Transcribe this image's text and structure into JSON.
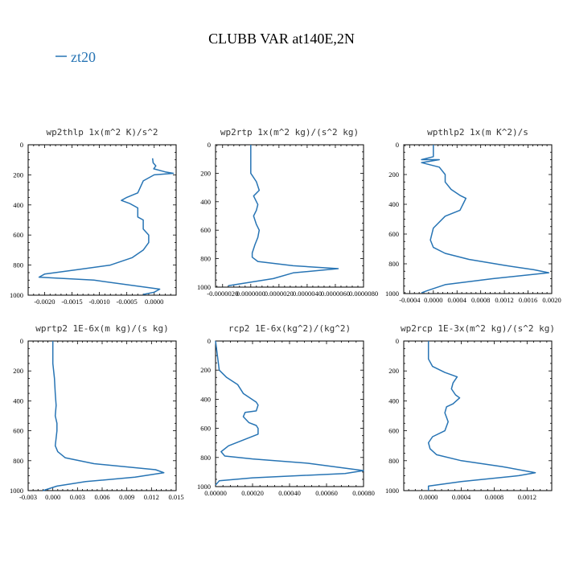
{
  "figure": {
    "title": "CLUBB VAR at140E,2N",
    "legend": {
      "label": "zt20",
      "color": "#2774b4"
    }
  },
  "chart_data": [
    {
      "type": "line",
      "title": "wp2thlp  1x(m^2 K)/s^2",
      "xlim": [
        -0.0023,
        0.0004
      ],
      "ylim": [
        1000,
        0
      ],
      "xticks": [
        -0.002,
        -0.0015,
        -0.001,
        -0.0005,
        0.0
      ],
      "xtick_labels": [
        "-0.0020",
        "-0.0015",
        "-0.0010",
        "-0.0005",
        "0.0000"
      ],
      "yticks": [
        0,
        200,
        400,
        600,
        800,
        1000
      ],
      "ytick_labels": [
        "0",
        "200",
        "400",
        "600",
        "800",
        "1000"
      ],
      "series": [
        {
          "name": "zt20",
          "x": [
            -3e-05,
            -2e-05,
            3e-05,
            -1e-05,
            0.0002,
            0.00035,
            0.0,
            -0.0002,
            -0.0003,
            -0.0005,
            -0.0006,
            -0.00045,
            -0.0003,
            -0.0003,
            -0.0002,
            -0.0002,
            -0.0001,
            -0.0001,
            -0.0002,
            -0.0004,
            -0.0008,
            -0.0014,
            -0.002,
            -0.0021,
            -0.0011,
            0.0001,
            0.0,
            -0.0002
          ],
          "y": [
            90,
            120,
            140,
            160,
            180,
            190,
            200,
            240,
            320,
            350,
            370,
            390,
            420,
            480,
            500,
            560,
            600,
            650,
            700,
            750,
            800,
            830,
            860,
            880,
            900,
            960,
            980,
            995
          ]
        }
      ]
    },
    {
      "type": "line",
      "title": "wp2rtp  1x(m^2 kg)/(s^2 kg)",
      "xlim": [
        -2.5e-06,
        8e-06
      ],
      "ylim": [
        1000,
        0
      ],
      "xticks": [
        -2e-06,
        0.0,
        2e-06,
        4e-06,
        6e-06,
        8e-06
      ],
      "xtick_labels": [
        "-0.0000020",
        "0.0000000",
        "0.0000020",
        "0.0000040",
        "0.0000060",
        "0.0000080"
      ],
      "yticks": [
        0,
        200,
        400,
        600,
        800,
        1000
      ],
      "ytick_labels": [
        "0",
        "200",
        "400",
        "600",
        "800",
        "1000"
      ],
      "series": [
        {
          "name": "zt20",
          "x": [
            0.0,
            0.0,
            0.0,
            4e-07,
            6e-07,
            2e-07,
            5e-07,
            4e-07,
            2e-07,
            4e-07,
            6e-07,
            5e-07,
            3e-07,
            1e-07,
            1e-07,
            5e-07,
            3e-06,
            6.2e-06,
            3e-06,
            1.6e-06,
            -1.6e-06
          ],
          "y": [
            0,
            150,
            200,
            260,
            320,
            360,
            420,
            460,
            500,
            560,
            600,
            650,
            700,
            760,
            790,
            820,
            850,
            870,
            900,
            940,
            990
          ]
        }
      ]
    },
    {
      "type": "line",
      "title": "wpthlp2  1x(m K^2)/s",
      "xlim": [
        -0.0005,
        0.002
      ],
      "ylim": [
        1000,
        0
      ],
      "xticks": [
        -0.0004,
        0.0,
        0.0004,
        0.0008,
        0.0012,
        0.0016,
        0.002
      ],
      "xtick_labels": [
        "-0.0004",
        "0.0000",
        "0.0004",
        "0.0008",
        "0.0012",
        "0.0016",
        "0.0020"
      ],
      "yticks": [
        0,
        200,
        400,
        600,
        800,
        1000
      ],
      "ytick_labels": [
        "0",
        "200",
        "400",
        "600",
        "800",
        "1000"
      ],
      "series": [
        {
          "name": "zt20",
          "x": [
            0.0,
            0.0,
            -0.0002,
            0.0001,
            -0.0002,
            0.0001,
            0.0002,
            0.0002,
            0.0003,
            0.00045,
            0.00055,
            0.0005,
            0.00045,
            0.0002,
            0.0,
            -5e-05,
            0.0,
            0.0002,
            0.0006,
            0.0012,
            0.0017,
            0.00195,
            0.001,
            0.0002,
            -0.0001,
            -0.0002
          ],
          "y": [
            0,
            80,
            100,
            100,
            120,
            150,
            200,
            250,
            300,
            340,
            360,
            400,
            440,
            480,
            560,
            640,
            690,
            730,
            770,
            810,
            840,
            860,
            900,
            940,
            980,
            995
          ]
        }
      ]
    },
    {
      "type": "line",
      "title": "wprtp2  1E-6x(m kg)/(s kg)",
      "xlim": [
        -0.003,
        0.015
      ],
      "ylim": [
        1000,
        0
      ],
      "xticks": [
        -0.003,
        0.0,
        0.003,
        0.006,
        0.009,
        0.012,
        0.015
      ],
      "xtick_labels": [
        "-0.003",
        "0.000",
        "0.003",
        "0.006",
        "0.009",
        "0.012",
        "0.015"
      ],
      "yticks": [
        0,
        200,
        400,
        600,
        800,
        1000
      ],
      "ytick_labels": [
        "0",
        "200",
        "400",
        "600",
        "800",
        "1000"
      ],
      "series": [
        {
          "name": "zt20",
          "x": [
            0.0,
            0.0,
            0.0002,
            0.0003,
            0.0004,
            0.0003,
            0.0005,
            0.0005,
            0.0003,
            0.0006,
            0.0015,
            0.005,
            0.0125,
            0.0135,
            0.01,
            0.004,
            0.0005,
            -0.0012
          ],
          "y": [
            0,
            150,
            250,
            350,
            430,
            500,
            550,
            600,
            700,
            740,
            780,
            820,
            860,
            880,
            910,
            940,
            970,
            1000
          ]
        }
      ]
    },
    {
      "type": "line",
      "title": "rcp2  1E-6x(kg^2)/(kg^2)",
      "xlim": [
        0.0,
        0.0008
      ],
      "ylim": [
        1000,
        0
      ],
      "xticks": [
        0.0,
        0.0002,
        0.0004,
        0.0006,
        0.0008
      ],
      "xtick_labels": [
        "0.00000",
        "0.00020",
        "0.00040",
        "0.00060",
        "0.00080"
      ],
      "yticks": [
        0,
        200,
        400,
        600,
        800,
        1000
      ],
      "ytick_labels": [
        "0",
        "200",
        "400",
        "600",
        "800",
        "1000"
      ],
      "series": [
        {
          "name": "zt20",
          "x": [
            0.0,
            2e-05,
            6e-05,
            0.00012,
            0.00015,
            0.00022,
            0.00023,
            0.00022,
            0.00016,
            0.00015,
            0.00018,
            0.00022,
            0.00023,
            0.00023,
            0.00015,
            7e-05,
            3e-05,
            5e-05,
            0.0002,
            0.0005,
            0.0008,
            0.0007,
            0.0002,
            2e-05,
            0.0
          ],
          "y": [
            0,
            200,
            250,
            300,
            360,
            420,
            440,
            480,
            490,
            520,
            560,
            580,
            600,
            640,
            680,
            720,
            760,
            790,
            810,
            840,
            890,
            910,
            940,
            960,
            990
          ]
        }
      ]
    },
    {
      "type": "line",
      "title": "wp2rcp  1E-3x(m^2 kg)/(s^2 kg)",
      "xlim": [
        -0.0003,
        0.0015
      ],
      "ylim": [
        1000,
        0
      ],
      "xticks": [
        0.0,
        0.0004,
        0.0008,
        0.0012
      ],
      "xtick_labels": [
        "0.0000",
        "0.0004",
        "0.0008",
        "0.0012"
      ],
      "yticks": [
        0,
        200,
        400,
        600,
        800,
        1000
      ],
      "ytick_labels": [
        "0",
        "200",
        "400",
        "600",
        "800",
        "1000"
      ],
      "series": [
        {
          "name": "zt20",
          "x": [
            0.0,
            0.0,
            5e-05,
            0.0002,
            0.00035,
            0.0003,
            0.00028,
            0.00033,
            0.00038,
            0.0003,
            0.00022,
            0.0002,
            0.00024,
            0.0002,
            5e-05,
            0.0,
            2e-05,
            0.0001,
            0.0004,
            0.0009,
            0.0013,
            0.0011,
            0.0004,
            0.0,
            0.0
          ],
          "y": [
            0,
            120,
            170,
            210,
            240,
            280,
            320,
            360,
            380,
            420,
            440,
            480,
            540,
            600,
            640,
            680,
            720,
            760,
            800,
            840,
            880,
            900,
            940,
            970,
            1000
          ]
        }
      ]
    }
  ]
}
